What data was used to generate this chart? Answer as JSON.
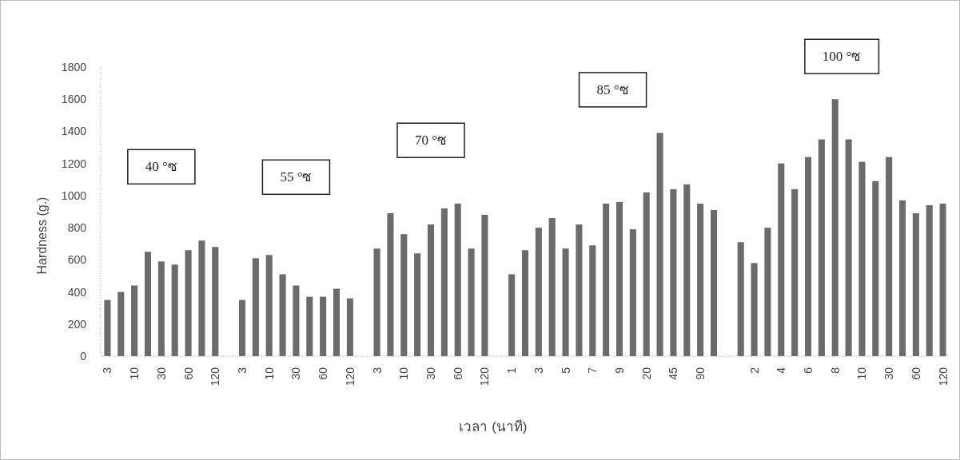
{
  "chart_data": {
    "type": "bar",
    "xlabel": "เวลา (นาที)",
    "ylabel": "Hardness (g.)",
    "color": "#6b6b6b",
    "categories": [
      "3",
      null,
      "10",
      null,
      "30",
      null,
      "60",
      null,
      "120",
      null,
      "3",
      null,
      "10",
      null,
      "30",
      null,
      "60",
      null,
      "120",
      null,
      "3",
      null,
      "10",
      null,
      "30",
      null,
      "60",
      null,
      "120",
      null,
      "1",
      null,
      "3",
      null,
      "5",
      null,
      "7",
      null,
      "9",
      null,
      "20",
      null,
      "45",
      null,
      "90",
      null,
      null,
      null,
      "2",
      null,
      "4",
      null,
      "6",
      null,
      "8",
      null,
      "10",
      null,
      "30",
      null,
      "60",
      null,
      "120"
    ],
    "values": [
      350,
      400,
      440,
      650,
      590,
      570,
      660,
      720,
      680,
      null,
      350,
      610,
      630,
      510,
      440,
      370,
      370,
      420,
      360,
      null,
      670,
      890,
      760,
      640,
      820,
      920,
      950,
      670,
      880,
      null,
      510,
      660,
      800,
      860,
      670,
      820,
      690,
      950,
      960,
      790,
      1020,
      1390,
      1040,
      1070,
      950,
      910,
      null,
      710,
      580,
      800,
      1200,
      1040,
      1240,
      1350,
      1600,
      1350,
      1210,
      1090,
      1240,
      970,
      890,
      940,
      950
    ],
    "ylim": [
      0,
      1800
    ],
    "yticks": [
      0,
      200,
      400,
      600,
      800,
      1000,
      1200,
      1400,
      1600,
      1800
    ],
    "grid": false,
    "annotations": [
      "40 °ซ",
      "55 °ซ",
      "70 °ซ",
      "85 °ซ",
      "100 °ซ"
    ]
  }
}
